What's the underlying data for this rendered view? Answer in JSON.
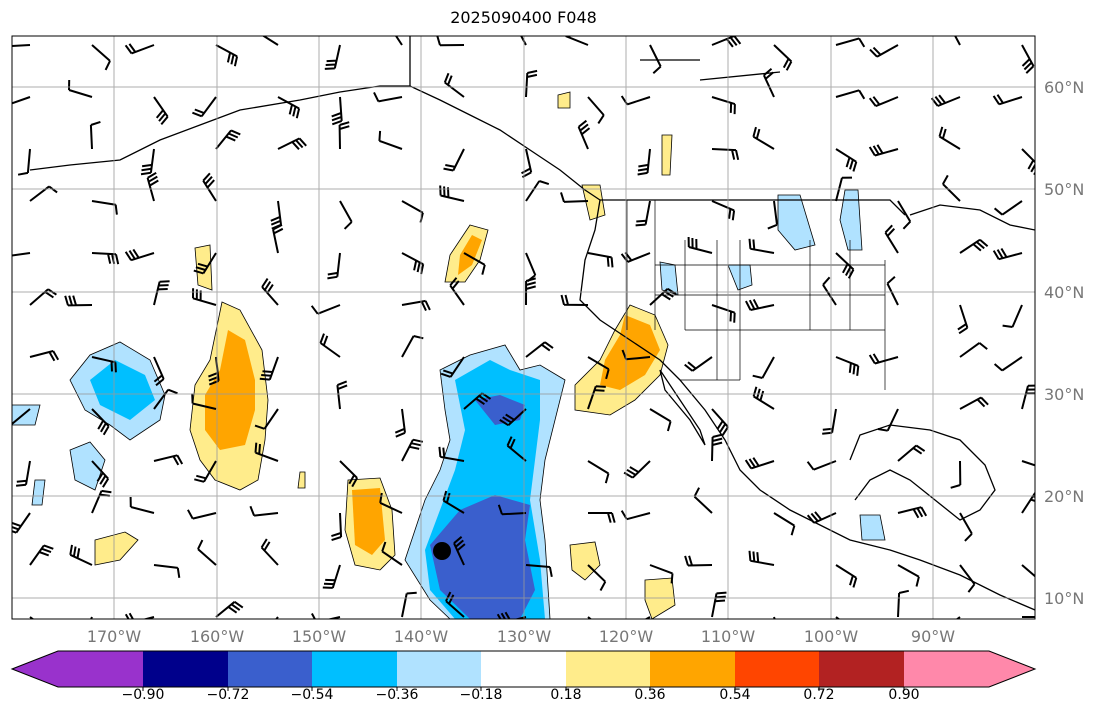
{
  "title": "2025090400 F048",
  "map": {
    "lon_labels": [
      "170°W",
      "160°W",
      "150°W",
      "140°W",
      "130°W",
      "120°W",
      "110°W",
      "100°W",
      "90°W"
    ],
    "lat_labels": [
      "60°N",
      "50°N",
      "40°N",
      "30°N",
      "20°N",
      "10°N"
    ],
    "marker": "storm-center"
  },
  "colorbar": {
    "ticks": [
      "−0.90",
      "−0.72",
      "−0.54",
      "−0.36",
      "−0.18",
      "0.18",
      "0.36",
      "0.54",
      "0.72",
      "0.90"
    ],
    "colors": [
      "#9932CC",
      "#00008B",
      "#3A5FCD",
      "#00BFFF",
      "#B0E2FF",
      "#FFFFFF",
      "#FFEC8B",
      "#FFA500",
      "#FF4500",
      "#B22222",
      "#FF88AA"
    ],
    "extend": "both"
  }
}
